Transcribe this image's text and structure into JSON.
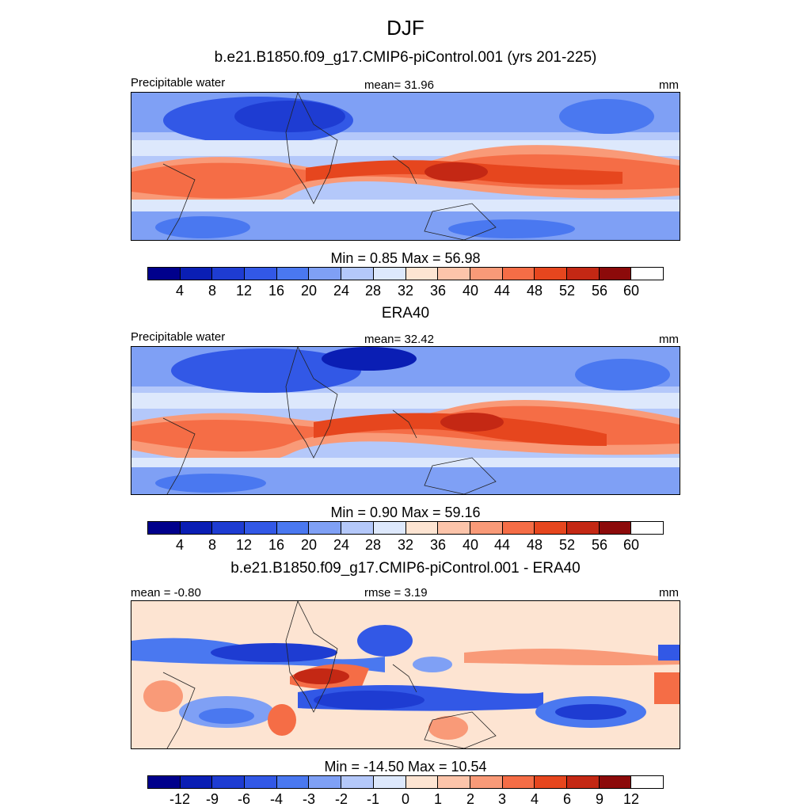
{
  "title": "DJF",
  "panels": [
    {
      "subtitle": "b.e21.B1850.f09_g17.CMIP6-piControl.001 (yrs 201-225)",
      "left_label": "Precipitable water",
      "center_label": "mean=  31.96",
      "right_label": "mm",
      "minmax": "Min =   0.85 Max =  56.98",
      "ticks": [
        "4",
        "8",
        "12",
        "16",
        "20",
        "24",
        "28",
        "32",
        "36",
        "40",
        "44",
        "48",
        "52",
        "56",
        "60"
      ]
    },
    {
      "subtitle": "ERA40",
      "left_label": "Precipitable water",
      "center_label": "mean=  32.42",
      "right_label": "mm",
      "minmax": "Min =   0.90 Max =  59.16",
      "ticks": [
        "4",
        "8",
        "12",
        "16",
        "20",
        "24",
        "28",
        "32",
        "36",
        "40",
        "44",
        "48",
        "52",
        "56",
        "60"
      ]
    },
    {
      "subtitle": "b.e21.B1850.f09_g17.CMIP6-piControl.001 - ERA40",
      "left_label": "mean =  -0.80",
      "center_label": "rmse =   3.19",
      "right_label": "mm",
      "minmax": "Min = -14.50 Max =  10.54",
      "ticks": [
        "-12",
        "-9",
        "-6",
        "-4",
        "-3",
        "-2",
        "-1",
        "0",
        "1",
        "2",
        "3",
        "4",
        "6",
        "9",
        "12"
      ]
    }
  ],
  "colorbar_colors": [
    "#00008c",
    "#0a1eb4",
    "#1e3cd2",
    "#3258e6",
    "#4a78f0",
    "#7fa0f5",
    "#b4c8fa",
    "#dde8fc",
    "#fde4d2",
    "#fcc4aa",
    "#f99a78",
    "#f56d46",
    "#e6461e",
    "#c42814",
    "#8c0a0a"
  ]
}
